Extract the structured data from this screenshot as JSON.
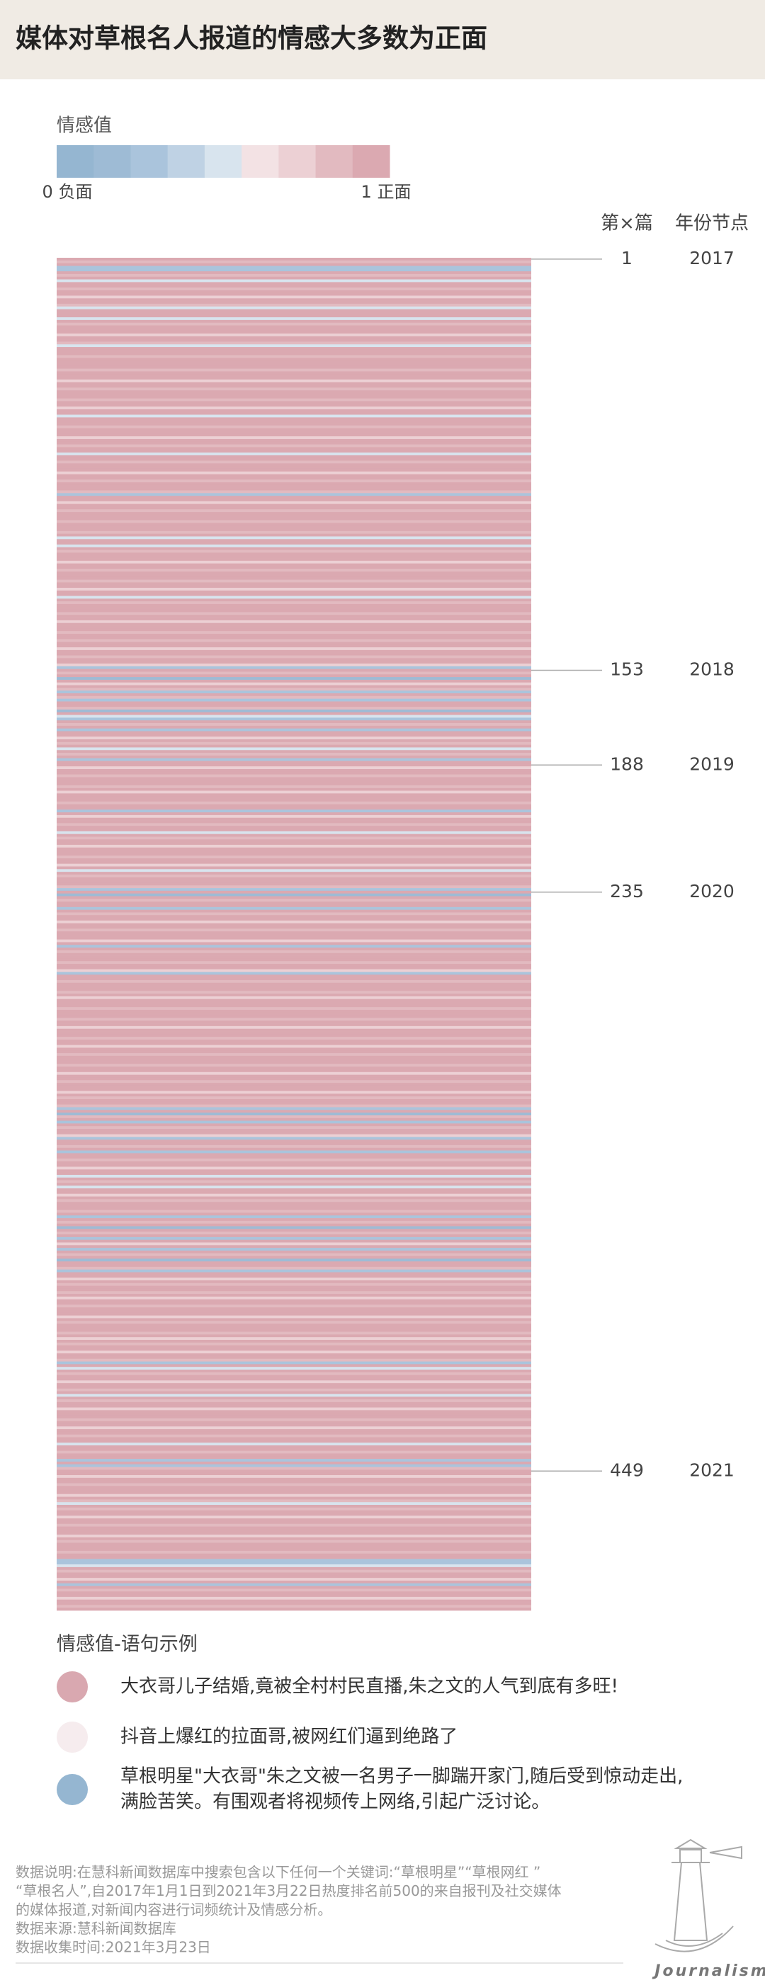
{
  "chart_data": {
    "type": "stripe",
    "title": "媒体对草根名人报道的情感大多数为正面",
    "legend_title": "情感值",
    "colors": [
      "#95b6d1",
      "#9ebbd5",
      "#aac4dc",
      "#bfd2e4",
      "#d8e4ee",
      "#f3e2e4",
      "#ecd0d4",
      "#e2bac0",
      "#dba9b1"
    ],
    "scale_ticks": [
      {
        "value": 0,
        "label": "0 负面"
      },
      {
        "value": 1,
        "label": "1 正面"
      }
    ],
    "column_headers": [
      "第×篇",
      "年份节点"
    ],
    "markers": [
      {
        "article": 1,
        "year": "2017"
      },
      {
        "article": 153,
        "year": "2018"
      },
      {
        "article": 188,
        "year": "2019"
      },
      {
        "article": 235,
        "year": "2020"
      },
      {
        "article": 449,
        "year": "2021"
      }
    ],
    "values": [
      1,
      0.9,
      1,
      0.2,
      0.3,
      1,
      0.9,
      1,
      0.5,
      1,
      1,
      0.9,
      1,
      1,
      0.8,
      1,
      1,
      0.9,
      0.5,
      1,
      1,
      1,
      0.5,
      1,
      0.9,
      1,
      1,
      1,
      0.8,
      1,
      1,
      0.9,
      0.5,
      1,
      1,
      1,
      0.9,
      1,
      1,
      1,
      1,
      0.9,
      1,
      1,
      1,
      0.8,
      1,
      1,
      0.9,
      1,
      1,
      1,
      0.9,
      1,
      1,
      0.8,
      1,
      1,
      0.5,
      1,
      1,
      1,
      0.9,
      1,
      1,
      1,
      0.8,
      1,
      1,
      0.9,
      1,
      1,
      0.5,
      1,
      1,
      0.9,
      1,
      1,
      1,
      0.8,
      1,
      1,
      0.9,
      1,
      1,
      1,
      0.9,
      0.3,
      1,
      1,
      0.8,
      1,
      1,
      0.9,
      1,
      1,
      1,
      0.9,
      1,
      1,
      1,
      0.9,
      1,
      0.5,
      1,
      1,
      0.5,
      1,
      0.9,
      1,
      1,
      1,
      0.8,
      1,
      1,
      0.9,
      1,
      1,
      1,
      0.9,
      1,
      1,
      0.8,
      1,
      1,
      0.5,
      1,
      0.9,
      1,
      1,
      1,
      0.9,
      1,
      1,
      0.8,
      1,
      1,
      1,
      0.9,
      1,
      1,
      0.9,
      1,
      1,
      0.8,
      1,
      1,
      0.9,
      1,
      1,
      0.7,
      0.2,
      1,
      0.9,
      1,
      0.1,
      1,
      0.8,
      1,
      0.9,
      0.3,
      1,
      0.9,
      0.2,
      1,
      1,
      0.9,
      0.1,
      1,
      0.5,
      0.3,
      1,
      0.9,
      1,
      0.2,
      1,
      1,
      0.8,
      1,
      0.9,
      1,
      0.5,
      1,
      0.9,
      1,
      0.3,
      1,
      1,
      0.8,
      1,
      1,
      0.9,
      1,
      1,
      1,
      0.9,
      1,
      0.8,
      1,
      1,
      1,
      0.9,
      1,
      1,
      0.3,
      1,
      0.8,
      1,
      1,
      0.9,
      1,
      1,
      0.5,
      1,
      0.9,
      1,
      1,
      0.8,
      1,
      1,
      1,
      0.9,
      1,
      1,
      0.8,
      1,
      0.5,
      1,
      0.9,
      1,
      1,
      1,
      0.9,
      0.2,
      1,
      0.1,
      1,
      0.9,
      1,
      1,
      0.3,
      1,
      0.9,
      1,
      1,
      0.8,
      1,
      1,
      0.9,
      1,
      1,
      1,
      0.8,
      1,
      0.2,
      1,
      0.9,
      1,
      1,
      1,
      0.9,
      1,
      1,
      0.8,
      0.2,
      1,
      1,
      0.9,
      1,
      1,
      1,
      0.9,
      1,
      0.8,
      1,
      1,
      1,
      0.9,
      1,
      1,
      1,
      0.9,
      1,
      1,
      0.8,
      1,
      1,
      1,
      0.9,
      1,
      1,
      0.8,
      1,
      1,
      0.9,
      1,
      1,
      1,
      0.9,
      1,
      1,
      0.8,
      1,
      1,
      0.9,
      1,
      1,
      1,
      0.8,
      1,
      0.9,
      1,
      1,
      0.9,
      0.2,
      1,
      0.1,
      0.9,
      1,
      0.3,
      1,
      0.9,
      1,
      1,
      0.8,
      0.3,
      1,
      1,
      0.9,
      1,
      0.2,
      1,
      1,
      0.9,
      1,
      1,
      0.8,
      1,
      1,
      0.5,
      1,
      0.9,
      1,
      0.5,
      1,
      1,
      0.8,
      1,
      0.9,
      1,
      1,
      1,
      0.9,
      1,
      0.2,
      1,
      0.9,
      1,
      0.1,
      1,
      0.9,
      1,
      0.2,
      1,
      0.8,
      1,
      0.3,
      1,
      0.9,
      1,
      0.1,
      1,
      1,
      0.9,
      0.2,
      1,
      1,
      0.8,
      1,
      0.9,
      1,
      1,
      0.9,
      1,
      0.8,
      1,
      1,
      0.9,
      1,
      1,
      1,
      0.8,
      1,
      0.9,
      1,
      1,
      1,
      0.9,
      1,
      0.8,
      1,
      0.9,
      1,
      1,
      0.8,
      1,
      1,
      0.9,
      0.3,
      1,
      0.5,
      1,
      0.9,
      1,
      1,
      0.8,
      1,
      1,
      0.9,
      1,
      0.5,
      1,
      0.9,
      1,
      1,
      0.8,
      1,
      1,
      1,
      0.9,
      1,
      1,
      0.8,
      1,
      1,
      0.9,
      1,
      1,
      0.5,
      1,
      1,
      0.9,
      1,
      1,
      0.2,
      1,
      0.3,
      0.9,
      1,
      1,
      0.8,
      1,
      1,
      0.9,
      1,
      1,
      1,
      0.8,
      1,
      0.9,
      0.5,
      1,
      0.9,
      1,
      1,
      0.8,
      1,
      1,
      0.9,
      1,
      1,
      1,
      0.8,
      1,
      0.9,
      1,
      1,
      1,
      0.9,
      1,
      1,
      0.2,
      0.3,
      0.5,
      1,
      0.9,
      1,
      1,
      0.8,
      1,
      0.3,
      1,
      0.9,
      1,
      1,
      0.8,
      1,
      1,
      0.9,
      1
    ]
  },
  "examples": {
    "title": "情感值-语句示例",
    "items": [
      {
        "color": "#d9a8b0",
        "lines": [
          "大衣哥儿子结婚,竟被全村村民直播,朱之文的人气到底有多旺!"
        ]
      },
      {
        "color": "#f6ecee",
        "lines": [
          "抖音上爆红的拉面哥,被网红们逼到绝路了"
        ]
      },
      {
        "color": "#95b6d1",
        "lines": [
          "草根明星\"大衣哥\"朱之文被一名男子一脚踹开家门,随后受到惊动走出,",
          "满脸苦笑。有围观者将视频传上网络,引起广泛讨论。"
        ]
      }
    ]
  },
  "footer": {
    "notes": [
      "数据说明:在慧科新闻数据库中搜索包含以下任何一个关键词:“草根明星”“草根网红 ”",
      "“草根名人”,自2017年1月1日到2021年3月22日热度排名前500的来自报刊及社交媒体",
      "的媒体报道,对新闻内容进行词频统计及情感分析。",
      "数据来源:慧科新闻数据库",
      "数据收集时间:2021年3月23日"
    ],
    "logo": "Journalism"
  }
}
